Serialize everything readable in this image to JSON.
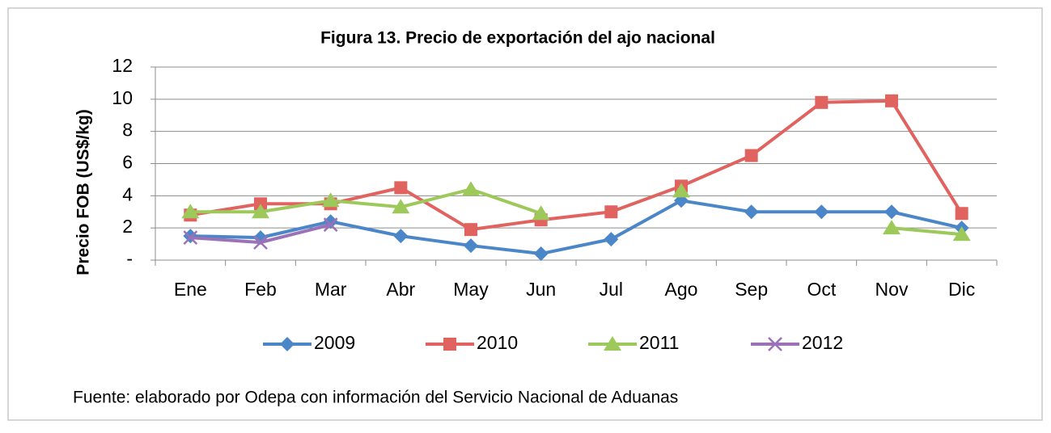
{
  "chart_data": {
    "type": "line",
    "title": "Figura  13. Precio de exportación del ajo nacional",
    "y_label": "Precio FOB  (US$/kg)",
    "source": "Fuente: elaborado por Odepa con información del Servicio Nacional de Aduanas",
    "categories": [
      "Ene",
      "Feb",
      "Mar",
      "Abr",
      "May",
      "Jun",
      "Jul",
      "Ago",
      "Sep",
      "Oct",
      "Nov",
      "Dic"
    ],
    "series": [
      {
        "name": "2009",
        "color": "#4a86c8",
        "marker": "diamond",
        "values": [
          1.5,
          1.4,
          2.4,
          1.5,
          0.9,
          0.4,
          1.3,
          3.7,
          3.0,
          3.0,
          3.0,
          2.0
        ]
      },
      {
        "name": "2010",
        "color": "#e06360",
        "marker": "square",
        "values": [
          2.8,
          3.5,
          3.5,
          4.5,
          1.9,
          2.5,
          3.0,
          4.6,
          6.5,
          9.8,
          9.9,
          2.9
        ]
      },
      {
        "name": "2011",
        "color": "#9dc85a",
        "marker": "triangle",
        "values": [
          3.0,
          3.0,
          3.7,
          3.3,
          4.4,
          2.9,
          null,
          4.3,
          null,
          null,
          2.0,
          1.6
        ]
      },
      {
        "name": "2012",
        "color": "#9b72b8",
        "marker": "x",
        "values": [
          1.4,
          1.1,
          2.2,
          null,
          null,
          null,
          null,
          null,
          null,
          null,
          null,
          null
        ]
      }
    ],
    "ylim": [
      0,
      12
    ],
    "yticks": [
      {
        "value": 0,
        "label": "-"
      },
      2,
      4,
      6,
      8,
      10,
      12
    ],
    "grid": true,
    "legend": "bottom"
  }
}
